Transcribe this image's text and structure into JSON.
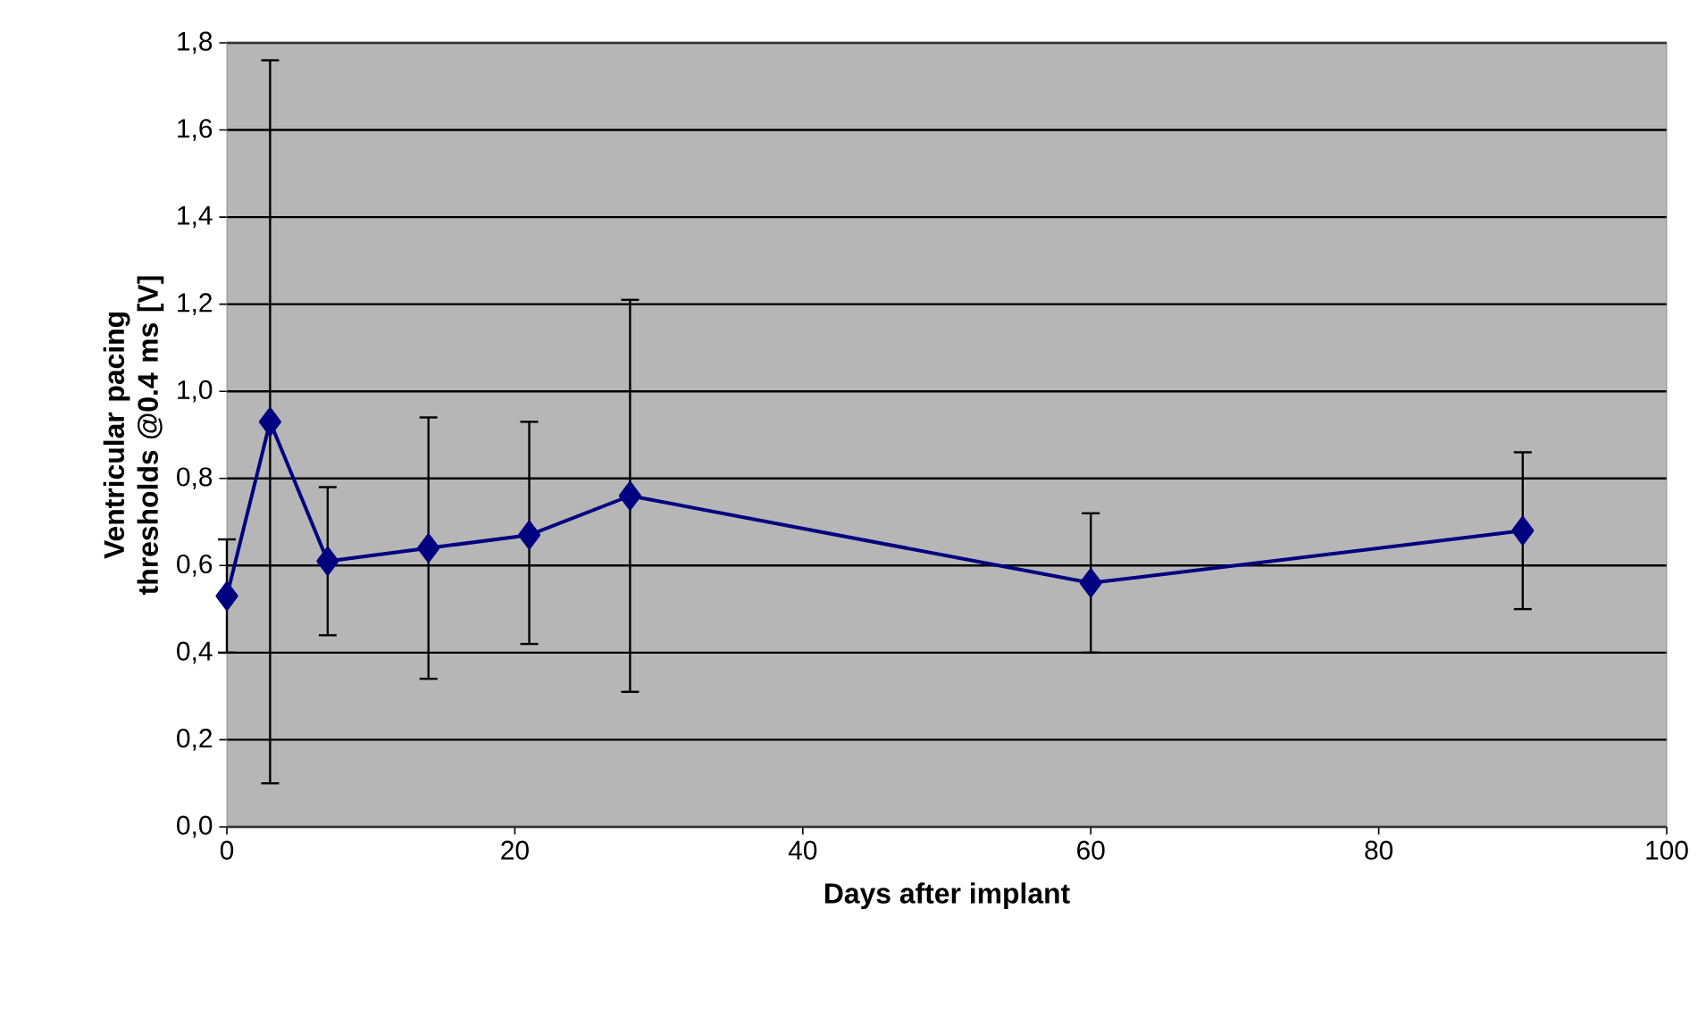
{
  "chart_data": {
    "type": "line",
    "xlabel": "Days after implant",
    "ylabel": "Ventricular pacing thresholds @0.4 ms [V]",
    "x": [
      0,
      3,
      7,
      14,
      21,
      28,
      60,
      90
    ],
    "series": [
      {
        "color": "#000080",
        "values": [
          0.53,
          0.93,
          0.61,
          0.64,
          0.67,
          0.76,
          0.56,
          0.68
        ],
        "errors": [
          [
            0.4,
            0.66
          ],
          [
            0.1,
            1.76
          ],
          [
            0.44,
            0.78
          ],
          [
            0.34,
            0.94
          ],
          [
            0.42,
            0.93
          ],
          [
            0.31,
            1.21
          ],
          [
            0.4,
            0.72
          ],
          [
            0.5,
            0.86
          ]
        ]
      }
    ],
    "xlim": [
      0,
      100
    ],
    "xticks": [
      0,
      20,
      40,
      60,
      80,
      100
    ],
    "ylim": [
      0,
      1.8
    ],
    "yticks": [
      {
        "value": 0,
        "label": "0,0"
      },
      {
        "value": 0.2,
        "label": "0,2"
      },
      {
        "value": 0.4,
        "label": "0,4"
      },
      {
        "value": 0.6,
        "label": "0,6"
      },
      {
        "value": 0.8,
        "label": "0,8"
      },
      {
        "value": 1.0,
        "label": "1,0"
      },
      {
        "value": 1.2,
        "label": "1,2"
      },
      {
        "value": 1.4,
        "label": "1,4"
      },
      {
        "value": 1.6,
        "label": "1,6"
      },
      {
        "value": 1.8,
        "label": "1,8"
      }
    ],
    "grid": "y",
    "marker": "diamond",
    "line_style": "solid"
  }
}
